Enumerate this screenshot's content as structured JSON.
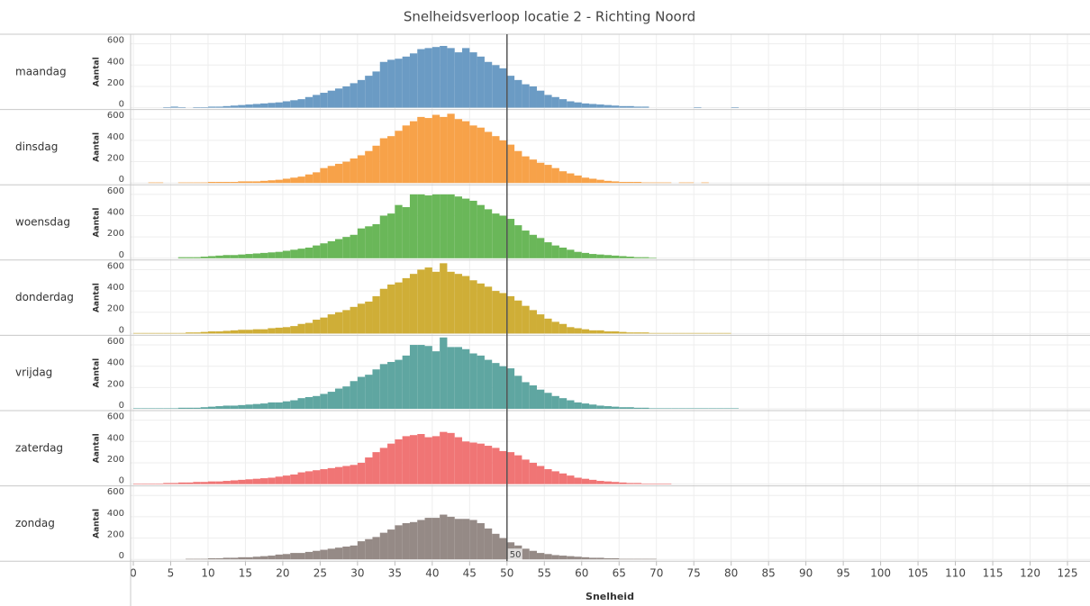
{
  "chart_data": {
    "type": "histogram",
    "title": "Snelheidsverloop locatie 2 - Richting Noord",
    "x_label": "Snelheid",
    "y_label": "Aantal",
    "reference_line": 50,
    "bins": [
      0,
      1,
      2,
      3,
      4,
      5,
      6,
      7,
      8,
      9,
      10,
      11,
      12,
      13,
      14,
      15,
      16,
      17,
      18,
      19,
      20,
      21,
      22,
      23,
      24,
      25,
      26,
      27,
      28,
      29,
      30,
      31,
      32,
      33,
      34,
      35,
      36,
      37,
      38,
      39,
      40,
      41,
      42,
      43,
      44,
      45,
      46,
      47,
      48,
      49,
      50,
      51,
      52,
      53,
      54,
      55,
      56,
      57,
      58,
      59,
      60,
      61,
      62,
      63,
      64,
      65,
      66,
      67,
      68,
      69,
      70,
      71,
      72,
      73,
      74,
      75,
      76,
      77,
      78,
      79,
      80,
      81,
      82
    ],
    "xlim": [
      0,
      128
    ],
    "xticks": [
      0,
      5,
      10,
      15,
      20,
      25,
      30,
      35,
      40,
      45,
      50,
      55,
      60,
      65,
      70,
      75,
      80,
      85,
      90,
      95,
      100,
      105,
      110,
      115,
      120,
      125
    ],
    "ylim": [
      0,
      690
    ],
    "yticks": [
      0,
      200,
      400,
      600
    ],
    "grid": true,
    "series": [
      {
        "name": "maandag",
        "color": "#6b9bc4",
        "values": [
          0,
          0,
          0,
          0,
          5,
          10,
          5,
          0,
          5,
          5,
          10,
          10,
          15,
          20,
          25,
          30,
          35,
          40,
          45,
          50,
          60,
          70,
          80,
          100,
          120,
          140,
          160,
          180,
          200,
          230,
          260,
          300,
          340,
          430,
          450,
          460,
          480,
          510,
          550,
          560,
          570,
          580,
          560,
          520,
          560,
          520,
          480,
          430,
          400,
          370,
          300,
          260,
          220,
          200,
          160,
          120,
          100,
          80,
          60,
          50,
          40,
          35,
          30,
          25,
          20,
          15,
          15,
          10,
          10,
          0,
          0,
          0,
          0,
          0,
          0,
          5,
          0,
          0,
          0,
          0,
          5,
          0
        ]
      },
      {
        "name": "dinsdag",
        "color": "#f7a249",
        "values": [
          0,
          0,
          5,
          5,
          0,
          0,
          5,
          5,
          5,
          5,
          10,
          10,
          10,
          10,
          15,
          15,
          15,
          20,
          25,
          30,
          40,
          50,
          60,
          80,
          100,
          140,
          160,
          180,
          200,
          230,
          260,
          300,
          350,
          420,
          440,
          490,
          540,
          580,
          620,
          610,
          640,
          620,
          650,
          600,
          580,
          540,
          520,
          480,
          440,
          400,
          360,
          300,
          250,
          220,
          190,
          170,
          140,
          110,
          90,
          70,
          50,
          40,
          30,
          20,
          15,
          10,
          10,
          10,
          5,
          5,
          5,
          5,
          0,
          5,
          5,
          0,
          5,
          0,
          0,
          0,
          0,
          0
        ]
      },
      {
        "name": "woensdag",
        "color": "#6ab759",
        "values": [
          0,
          0,
          0,
          0,
          0,
          0,
          10,
          10,
          10,
          15,
          20,
          25,
          30,
          30,
          35,
          40,
          45,
          50,
          55,
          60,
          70,
          80,
          90,
          100,
          120,
          140,
          160,
          180,
          200,
          220,
          280,
          300,
          320,
          400,
          420,
          500,
          480,
          600,
          600,
          590,
          600,
          600,
          600,
          580,
          560,
          540,
          500,
          460,
          420,
          400,
          370,
          310,
          260,
          220,
          190,
          150,
          120,
          100,
          80,
          60,
          50,
          40,
          35,
          30,
          25,
          20,
          15,
          10,
          10,
          5,
          0,
          0,
          0,
          0,
          0,
          0,
          0,
          0,
          0,
          0,
          0,
          0
        ]
      },
      {
        "name": "donderdag",
        "color": "#cfae37",
        "values": [
          5,
          5,
          5,
          5,
          5,
          5,
          5,
          10,
          10,
          15,
          20,
          20,
          25,
          30,
          35,
          35,
          40,
          40,
          50,
          55,
          60,
          70,
          90,
          100,
          130,
          150,
          180,
          200,
          220,
          250,
          280,
          300,
          350,
          420,
          460,
          480,
          520,
          560,
          600,
          620,
          580,
          660,
          580,
          560,
          540,
          500,
          470,
          440,
          400,
          380,
          350,
          310,
          260,
          220,
          180,
          140,
          110,
          90,
          60,
          50,
          40,
          30,
          30,
          20,
          20,
          15,
          10,
          10,
          10,
          5,
          5,
          5,
          5,
          5,
          5,
          5,
          5,
          5,
          5,
          5,
          0,
          0
        ]
      },
      {
        "name": "vrijdag",
        "color": "#5fa6a1",
        "values": [
          5,
          5,
          5,
          5,
          5,
          5,
          10,
          10,
          10,
          15,
          20,
          25,
          30,
          30,
          35,
          40,
          45,
          50,
          60,
          60,
          70,
          80,
          100,
          110,
          120,
          140,
          160,
          190,
          210,
          260,
          300,
          320,
          370,
          420,
          440,
          460,
          500,
          600,
          600,
          590,
          540,
          670,
          580,
          580,
          560,
          520,
          500,
          460,
          430,
          400,
          380,
          310,
          250,
          220,
          180,
          150,
          120,
          100,
          80,
          60,
          50,
          40,
          30,
          25,
          20,
          15,
          15,
          10,
          10,
          5,
          5,
          5,
          5,
          5,
          5,
          5,
          5,
          5,
          5,
          5,
          5,
          0
        ]
      },
      {
        "name": "zaterdag",
        "color": "#f07575",
        "values": [
          5,
          5,
          5,
          5,
          10,
          10,
          15,
          15,
          20,
          20,
          25,
          25,
          30,
          35,
          40,
          45,
          50,
          55,
          60,
          70,
          80,
          90,
          110,
          120,
          130,
          140,
          150,
          160,
          170,
          180,
          200,
          250,
          300,
          340,
          380,
          420,
          450,
          460,
          470,
          440,
          450,
          490,
          480,
          440,
          400,
          390,
          380,
          360,
          340,
          310,
          300,
          270,
          230,
          200,
          170,
          140,
          120,
          100,
          80,
          60,
          50,
          40,
          30,
          25,
          20,
          15,
          10,
          10,
          5,
          5,
          5,
          5,
          0,
          0,
          0,
          0,
          0,
          0,
          0,
          0,
          0,
          0
        ]
      },
      {
        "name": "zondag",
        "color": "#958a86",
        "values": [
          0,
          0,
          0,
          0,
          0,
          0,
          0,
          5,
          5,
          5,
          10,
          10,
          15,
          15,
          20,
          20,
          25,
          30,
          35,
          45,
          50,
          60,
          60,
          70,
          80,
          90,
          100,
          110,
          120,
          130,
          170,
          190,
          210,
          250,
          280,
          320,
          340,
          350,
          370,
          390,
          390,
          420,
          400,
          380,
          380,
          370,
          340,
          290,
          240,
          200,
          160,
          130,
          100,
          80,
          60,
          50,
          40,
          35,
          30,
          25,
          20,
          15,
          15,
          10,
          10,
          5,
          5,
          5,
          5,
          5,
          0,
          0,
          0,
          0,
          0,
          0,
          0,
          0,
          0,
          0,
          0,
          0
        ]
      }
    ]
  }
}
